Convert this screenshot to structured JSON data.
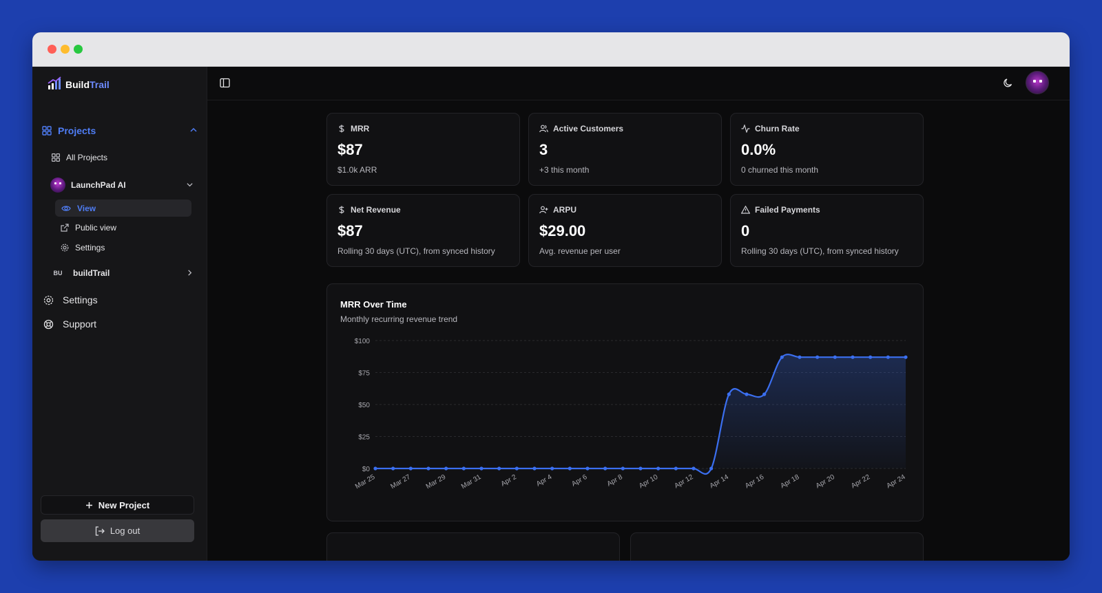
{
  "brand": {
    "name_part1": "Build",
    "name_part2": "Trail"
  },
  "sidebar": {
    "projects_label": "Projects",
    "all_projects_label": "All Projects",
    "project1": {
      "name": "LaunchPad AI"
    },
    "sub_items": {
      "view": "View",
      "public_view": "Public view",
      "settings": "Settings"
    },
    "project2": {
      "badge": "BU",
      "name": "buildTrail"
    },
    "settings_label": "Settings",
    "support_label": "Support",
    "new_project_label": "New Project",
    "logout_label": "Log out"
  },
  "cards": [
    {
      "title": "MRR",
      "value": "$87",
      "sub": "$1.0k ARR",
      "icon": "dollar-icon"
    },
    {
      "title": "Active Customers",
      "value": "3",
      "sub": "+3 this month",
      "icon": "users-icon"
    },
    {
      "title": "Churn Rate",
      "value": "0.0%",
      "sub": "0 churned this month",
      "icon": "activity-icon"
    },
    {
      "title": "Net Revenue",
      "value": "$87",
      "sub": "Rolling 30 days (UTC), from synced history",
      "icon": "dollar-icon"
    },
    {
      "title": "ARPU",
      "value": "$29.00",
      "sub": "Avg. revenue per user",
      "icon": "user-plus-icon"
    },
    {
      "title": "Failed Payments",
      "value": "0",
      "sub": "Rolling 30 days (UTC), from synced history",
      "icon": "alert-triangle-icon"
    }
  ],
  "colors": {
    "accent": "#4f7df5",
    "line": "#3b6ff0",
    "background": "#0b0b0c",
    "frame": "#1d3fae"
  },
  "chart_data": {
    "type": "line",
    "title": "MRR Over Time",
    "subtitle": "Monthly recurring revenue trend",
    "x": [
      "Mar 25",
      "Mar 26",
      "Mar 27",
      "Mar 28",
      "Mar 29",
      "Mar 30",
      "Mar 31",
      "Apr 1",
      "Apr 2",
      "Apr 3",
      "Apr 4",
      "Apr 5",
      "Apr 6",
      "Apr 7",
      "Apr 8",
      "Apr 9",
      "Apr 10",
      "Apr 11",
      "Apr 12",
      "Apr 13",
      "Apr 14",
      "Apr 15",
      "Apr 16",
      "Apr 17",
      "Apr 18",
      "Apr 19",
      "Apr 20",
      "Apr 21",
      "Apr 22",
      "Apr 23",
      "Apr 24"
    ],
    "xticks": [
      "Mar 25",
      "Mar 27",
      "Mar 29",
      "Mar 31",
      "Apr 2",
      "Apr 4",
      "Apr 6",
      "Apr 8",
      "Apr 10",
      "Apr 12",
      "Apr 14",
      "Apr 16",
      "Apr 18",
      "Apr 20",
      "Apr 22",
      "Apr 24"
    ],
    "values": [
      0,
      0,
      0,
      0,
      0,
      0,
      0,
      0,
      0,
      0,
      0,
      0,
      0,
      0,
      0,
      0,
      0,
      0,
      0,
      0,
      58,
      58,
      58,
      87,
      87,
      87,
      87,
      87,
      87,
      87,
      87
    ],
    "yticks": [
      "$0",
      "$25",
      "$50",
      "$75",
      "$100"
    ],
    "ylim": [
      0,
      100
    ],
    "grid": true,
    "fill": "area-gradient"
  }
}
